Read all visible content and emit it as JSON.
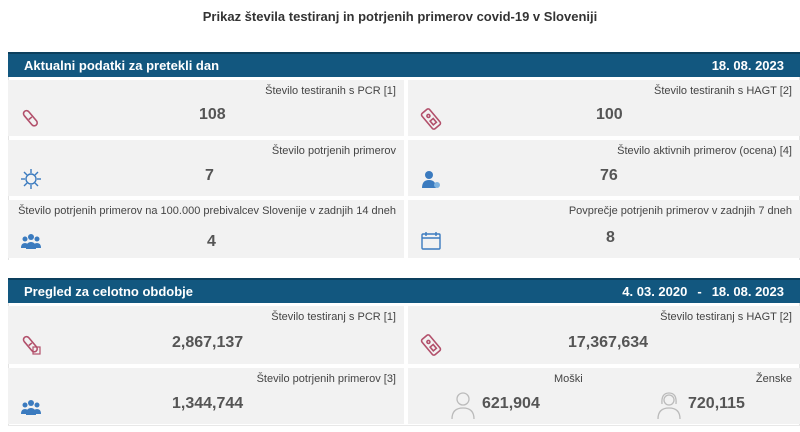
{
  "page": {
    "title": "Prikaz števila testiranj in potrjenih primerov covid-19 v Sloveniji"
  },
  "recent": {
    "header": "Aktualni podatki za pretekli dan",
    "date": "18. 08. 2023",
    "cards": [
      {
        "label": "Število testiranih s PCR [1]",
        "value": "108",
        "icon": "pcr-test-tube-icon"
      },
      {
        "label": "Število testiranih s HAGT [2]",
        "value": "100",
        "icon": "rapid-test-icon"
      },
      {
        "label": "Število potrjenih primerov",
        "value": "7",
        "icon": "virus-icon"
      },
      {
        "label": "Število aktivnih primerov (ocena) [4]",
        "value": "76",
        "icon": "person-icon"
      },
      {
        "label": "Število potrjenih primerov na 100.000 prebivalcev Slovenije v zadnjih 14 dneh",
        "value": "4",
        "icon": "population-icon"
      },
      {
        "label": "Povprečje potrjenih primerov v zadnjih 7 dneh",
        "value": "8",
        "icon": "calendar-icon"
      }
    ]
  },
  "overall": {
    "header": "Pregled za celotno obdobje",
    "date_from": "4. 03. 2020",
    "separator": "-",
    "date_to": "18. 08. 2023",
    "cards": [
      {
        "label": "Število testiranj s PCR [1]",
        "value": "2,867,137",
        "icon": "pcr-test-tube-icon"
      },
      {
        "label": "Število testiranj s HAGT [2]",
        "value": "17,367,634",
        "icon": "rapid-test-icon"
      },
      {
        "label": "Število potrjenih primerov [3]",
        "value": "1,344,744",
        "icon": "population-icon"
      }
    ],
    "sex": {
      "male_label": "Moški",
      "male_value": "621,904",
      "female_label": "Ženske",
      "female_value": "720,115"
    }
  },
  "colors": {
    "header_bg": "#12577f",
    "card_bg": "#f2f2f2",
    "icon_accent": "#b2506b",
    "icon_blue": "#3b7bbf"
  }
}
